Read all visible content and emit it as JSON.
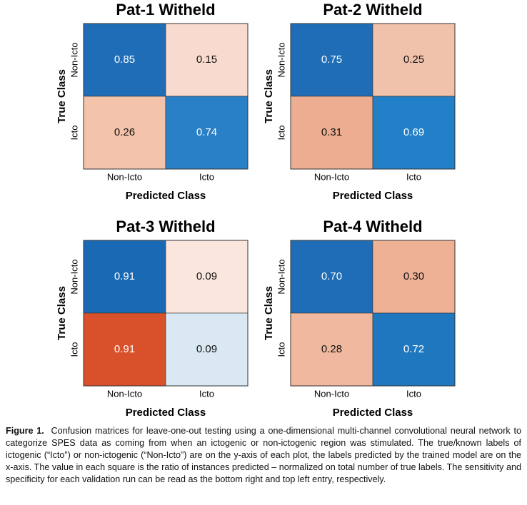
{
  "chart_data": [
    {
      "type": "heatmap",
      "title": "Pat-1 Witheld",
      "xlabel": "Predicted Class",
      "ylabel": "True Class",
      "x_categories": [
        "Non-Icto",
        "Icto"
      ],
      "y_categories": [
        "Non-Icto",
        "Icto"
      ],
      "values": [
        [
          0.85,
          0.15
        ],
        [
          0.26,
          0.74
        ]
      ],
      "value_labels": [
        [
          "0.85",
          "0.15"
        ],
        [
          "0.26",
          "0.74"
        ]
      ],
      "colors": [
        [
          "#1f6db7",
          "#f8dbce"
        ],
        [
          "#f3c3ac",
          "#2a80c6"
        ]
      ]
    },
    {
      "type": "heatmap",
      "title": "Pat-2 Witheld",
      "xlabel": "Predicted Class",
      "ylabel": "True Class",
      "x_categories": [
        "Non-Icto",
        "Icto"
      ],
      "y_categories": [
        "Non-Icto",
        "Icto"
      ],
      "values": [
        [
          0.75,
          0.25
        ],
        [
          0.31,
          0.69
        ]
      ],
      "value_labels": [
        [
          "0.75",
          "0.25"
        ],
        [
          "0.31",
          "0.69"
        ]
      ],
      "colors": [
        [
          "#1f6db7",
          "#f1c2ab"
        ],
        [
          "#edad91",
          "#2180c7"
        ]
      ]
    },
    {
      "type": "heatmap",
      "title": "Pat-3 Witheld",
      "xlabel": "Predicted Class",
      "ylabel": "True Class",
      "x_categories": [
        "Non-Icto",
        "Icto"
      ],
      "y_categories": [
        "Non-Icto",
        "Icto"
      ],
      "values": [
        [
          0.91,
          0.09
        ],
        [
          0.91,
          0.09
        ]
      ],
      "value_labels": [
        [
          "0.91",
          "0.09"
        ],
        [
          "0.91",
          "0.09"
        ]
      ],
      "colors": [
        [
          "#1a69b4",
          "#fbe6de"
        ],
        [
          "#d9512b",
          "#d9e8f2"
        ]
      ]
    },
    {
      "type": "heatmap",
      "title": "Pat-4 Witheld",
      "xlabel": "Predicted Class",
      "ylabel": "True Class",
      "x_categories": [
        "Non-Icto",
        "Icto"
      ],
      "y_categories": [
        "Non-Icto",
        "Icto"
      ],
      "values": [
        [
          0.7,
          0.3
        ],
        [
          0.28,
          0.72
        ]
      ],
      "value_labels": [
        [
          "0.70",
          "0.30"
        ],
        [
          "0.28",
          "0.72"
        ]
      ],
      "colors": [
        [
          "#1f6db7",
          "#eeb196"
        ],
        [
          "#f0b99f",
          "#1f77bf"
        ]
      ]
    }
  ],
  "caption": {
    "label": "Figure 1.",
    "text": "Confusion matrices for leave-one-out testing using a one-dimensional multi-channel convolutional neural network to categorize SPES data as coming from when an ictogenic or non-ictogenic region was stimulated. The true/known labels of ictogenic (“Icto”) or non-ictogenic (“Non-Icto”) are on the y-axis of each plot, the labels predicted by the trained model are on the x-axis. The value in each square is the ratio of instances predicted – normalized on total number of true labels. The sensitivity and specificity for each validation run can be read as the bottom right and top left entry, respectively."
  }
}
